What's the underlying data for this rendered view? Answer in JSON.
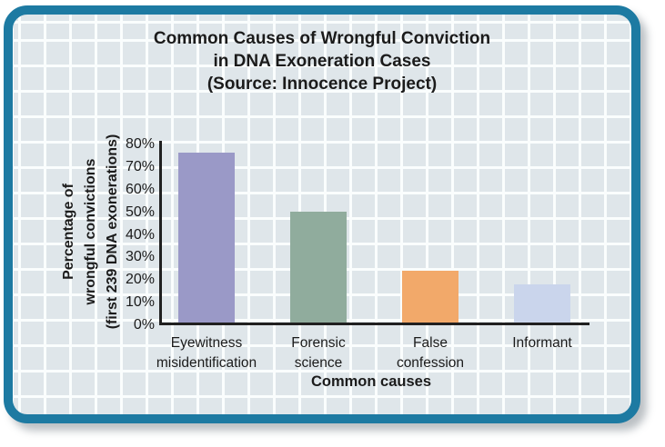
{
  "frame": {
    "border_color": "#1d7aa2",
    "cell_color": "#dfe6ea",
    "grid_line_color": "#fafdfd",
    "axis_color": "#202020",
    "text_color": "#1b1b1b"
  },
  "chart_data": {
    "type": "bar",
    "title_lines": [
      "Common Causes of Wrongful Conviction",
      "in DNA Exoneration Cases",
      "(Source: Innocence Project)"
    ],
    "categories": [
      "Eyewitness misidentification",
      "Forensic science",
      "False confession",
      "Informant"
    ],
    "category_lines": [
      [
        "Eyewitness",
        "misidentification"
      ],
      [
        "Forensic",
        "science"
      ],
      [
        "False",
        "confession"
      ],
      [
        "Informant",
        ""
      ]
    ],
    "values": [
      75,
      49,
      23,
      17
    ],
    "bar_colors": [
      "#9a99c7",
      "#90ac9d",
      "#f2a96a",
      "#cad5ec"
    ],
    "xlabel": "Common causes",
    "ylabel_lines": [
      "Percentage of",
      "wrongful convictions",
      "(first 239 DNA exonerations)"
    ],
    "y_ticks": [
      "80%",
      "70%",
      "60%",
      "50%",
      "40%",
      "30%",
      "20%",
      "10%",
      "0%"
    ],
    "ylim": [
      0,
      80
    ],
    "grid": "decorative background lattice",
    "legend_position": "none"
  }
}
